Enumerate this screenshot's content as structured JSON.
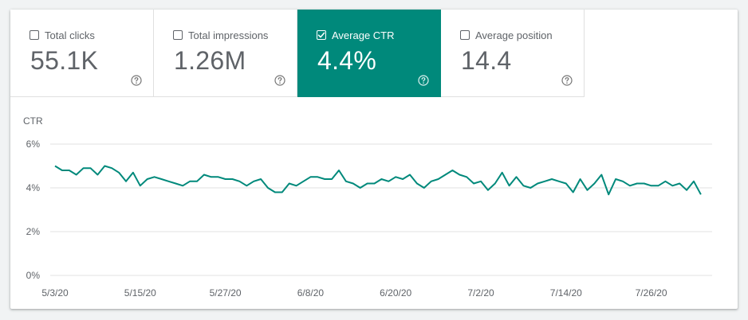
{
  "metrics": [
    {
      "label": "Total clicks",
      "value": "55.1K",
      "checked": false
    },
    {
      "label": "Total impressions",
      "value": "1.26M",
      "checked": false
    },
    {
      "label": "Average CTR",
      "value": "4.4%",
      "checked": true
    },
    {
      "label": "Average position",
      "value": "14.4",
      "checked": false
    }
  ],
  "colors": {
    "accent": "#00897b",
    "text": "#5f6368",
    "grid": "#e0e0e0"
  },
  "chart_data": {
    "type": "line",
    "ylabel": "CTR",
    "ylim": [
      0,
      6
    ],
    "y_ticks": [
      0,
      2,
      4,
      6
    ],
    "y_tick_labels": [
      "0%",
      "2%",
      "4%",
      "6%"
    ],
    "x_tick_labels": [
      "5/3/20",
      "5/15/20",
      "5/27/20",
      "6/8/20",
      "6/20/20",
      "7/2/20",
      "7/14/20",
      "7/26/20"
    ],
    "x_tick_indices": [
      0,
      12,
      24,
      36,
      48,
      60,
      72,
      84
    ],
    "grid": true,
    "series": [
      {
        "name": "Average CTR",
        "color": "#00897b",
        "values": [
          5.0,
          4.8,
          4.8,
          4.6,
          4.9,
          4.9,
          4.6,
          5.0,
          4.9,
          4.7,
          4.3,
          4.7,
          4.1,
          4.4,
          4.5,
          4.4,
          4.3,
          4.2,
          4.1,
          4.3,
          4.3,
          4.6,
          4.5,
          4.5,
          4.4,
          4.4,
          4.3,
          4.1,
          4.3,
          4.4,
          4.0,
          3.8,
          3.8,
          4.2,
          4.1,
          4.3,
          4.5,
          4.5,
          4.4,
          4.4,
          4.8,
          4.3,
          4.2,
          4.0,
          4.2,
          4.2,
          4.4,
          4.3,
          4.5,
          4.4,
          4.6,
          4.2,
          4.0,
          4.3,
          4.4,
          4.6,
          4.8,
          4.6,
          4.5,
          4.2,
          4.3,
          3.9,
          4.2,
          4.7,
          4.1,
          4.5,
          4.1,
          4.0,
          4.2,
          4.3,
          4.4,
          4.3,
          4.2,
          3.8,
          4.4,
          3.9,
          4.2,
          4.6,
          3.7,
          4.4,
          4.3,
          4.1,
          4.2,
          4.2,
          4.1,
          4.1,
          4.3,
          4.1,
          4.2,
          3.9,
          4.3,
          3.7
        ]
      }
    ]
  }
}
